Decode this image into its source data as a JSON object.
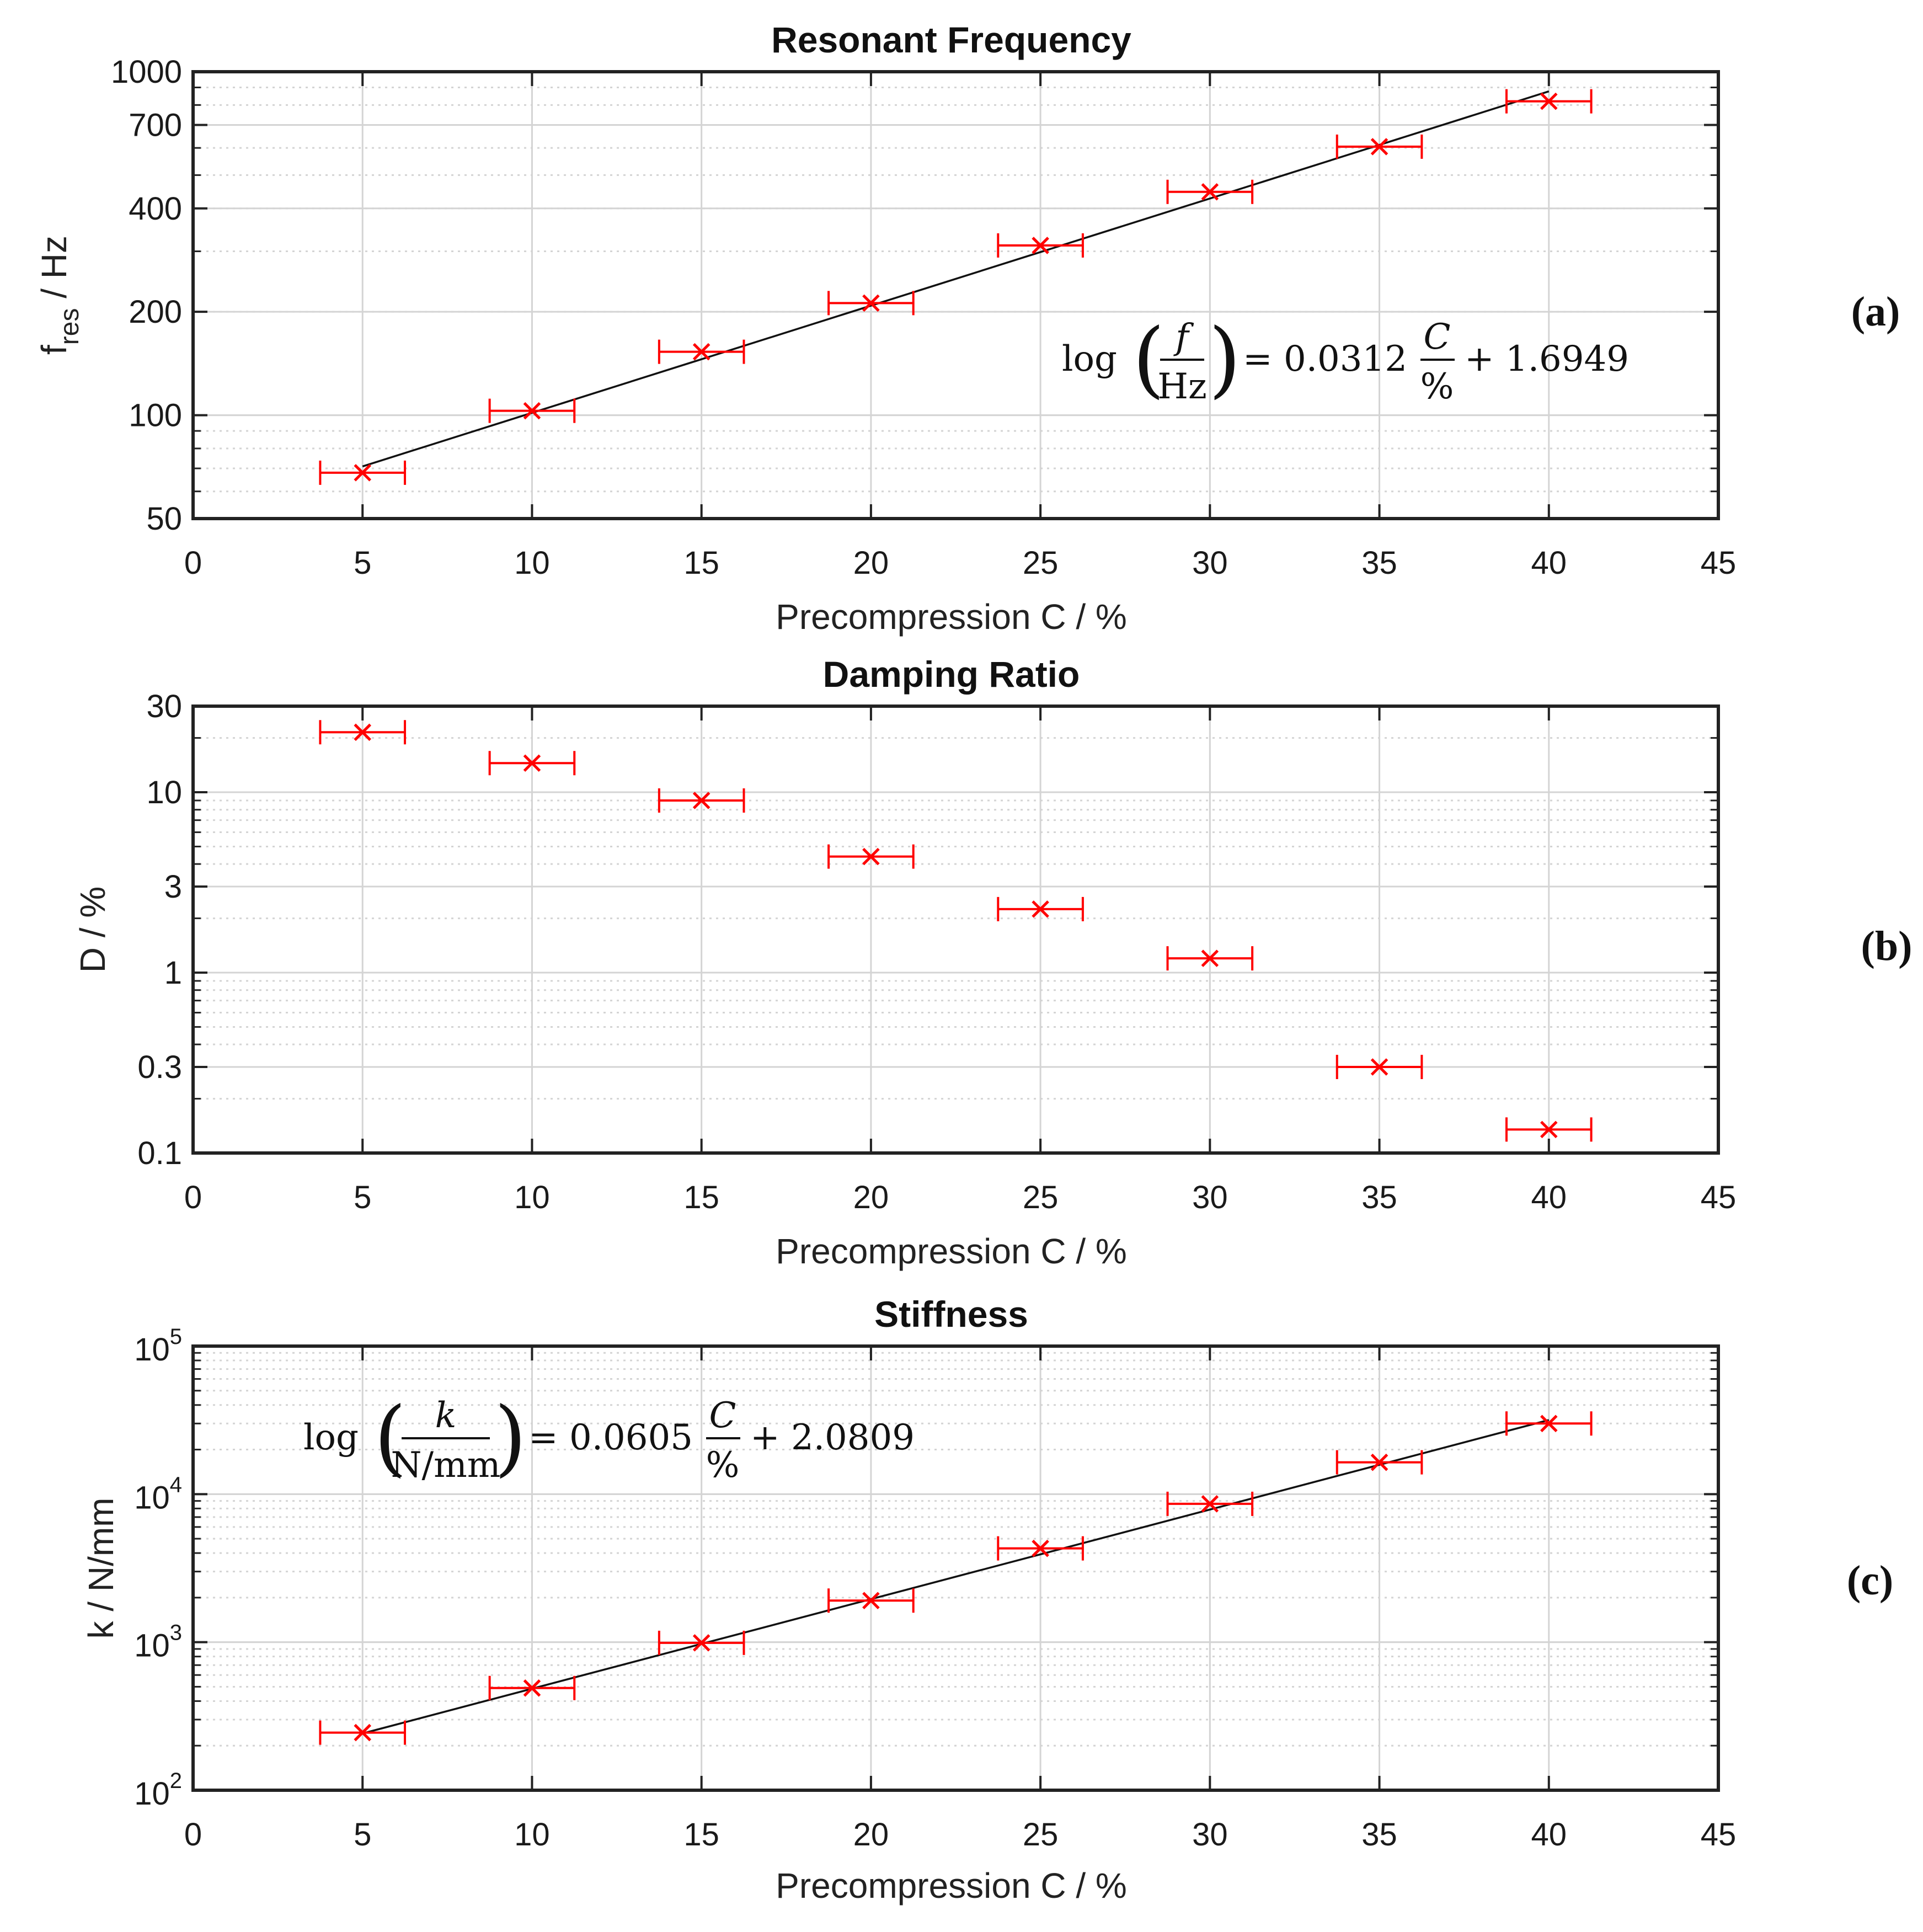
{
  "chart_data": [
    {
      "id": "a",
      "type": "scatter",
      "title": "Resonant Frequency",
      "xlabel": "Precompression C / %",
      "ylabel": "f",
      "ylabel_sub": "res",
      "ylabel_unit": " / Hz",
      "yscale": "log",
      "xlim": [
        0,
        45
      ],
      "ylim": [
        50,
        1000
      ],
      "x_ticks": [
        0,
        5,
        10,
        15,
        20,
        25,
        30,
        35,
        40,
        45
      ],
      "y_ticks": [
        50,
        100,
        200,
        400,
        700,
        1000
      ],
      "x": [
        5,
        10,
        15,
        20,
        25,
        30,
        35,
        40
      ],
      "y": [
        68,
        103,
        153,
        212,
        312,
        447,
        605,
        820
      ],
      "x_err": [
        1.25,
        1.25,
        1.25,
        1.25,
        1.25,
        1.25,
        1.25,
        1.25
      ],
      "fit": {
        "slope": 0.0312,
        "intercept": 1.6949
      },
      "equation": {
        "log": "log",
        "num": "f",
        "den": "Hz",
        "eq_text": "= 0.0312",
        "frac_num": "C",
        "frac_den": "%",
        "tail": "+ 1.6949"
      },
      "panel_label": "(a)"
    },
    {
      "id": "b",
      "type": "scatter",
      "title": "Damping Ratio",
      "xlabel": "Precompression C / %",
      "ylabel": "D / %",
      "yscale": "log",
      "xlim": [
        0,
        45
      ],
      "ylim": [
        0.1,
        30
      ],
      "x_ticks": [
        0,
        5,
        10,
        15,
        20,
        25,
        30,
        35,
        40,
        45
      ],
      "y_ticks": [
        0.1,
        0.3,
        1,
        3,
        10,
        30
      ],
      "x": [
        5,
        10,
        15,
        20,
        25,
        30,
        35,
        40
      ],
      "y": [
        21.5,
        14.5,
        9.0,
        4.4,
        2.25,
        1.2,
        0.3,
        0.135
      ],
      "x_err": [
        1.25,
        1.25,
        1.25,
        1.25,
        1.25,
        1.25,
        1.25,
        1.25
      ],
      "panel_label": "(b)"
    },
    {
      "id": "c",
      "type": "scatter",
      "title": "Stiffness",
      "xlabel": "Precompression C / %",
      "ylabel": "k / N/mm",
      "yscale": "log",
      "xlim": [
        0,
        45
      ],
      "ylim": [
        100,
        100000
      ],
      "x_ticks": [
        0,
        5,
        10,
        15,
        20,
        25,
        30,
        35,
        40,
        45
      ],
      "y_ticks": [
        100,
        1000,
        10000,
        100000
      ],
      "y_tick_labels": [
        {
          "base": "10",
          "exp": "2"
        },
        {
          "base": "10",
          "exp": "3"
        },
        {
          "base": "10",
          "exp": "4"
        },
        {
          "base": "10",
          "exp": "5"
        }
      ],
      "x": [
        5,
        10,
        15,
        20,
        25,
        30,
        35,
        40
      ],
      "y": [
        245,
        490,
        990,
        1910,
        4300,
        8600,
        16400,
        30000
      ],
      "x_err": [
        1.25,
        1.25,
        1.25,
        1.25,
        1.25,
        1.25,
        1.25,
        1.25
      ],
      "fit": {
        "slope": 0.0605,
        "intercept": 2.0809
      },
      "equation": {
        "log": "log",
        "num": "k",
        "den": "N/mm",
        "eq_text": "= 0.0605",
        "frac_num": "C",
        "frac_den": "%",
        "tail": "+ 2.0809"
      },
      "panel_label": "(c)"
    }
  ],
  "colors": {
    "marker": "#ff0000",
    "fit_line": "#111111",
    "grid": "#d4d4d4",
    "axes": "#222222",
    "panel_label_b": "#1f3864"
  }
}
